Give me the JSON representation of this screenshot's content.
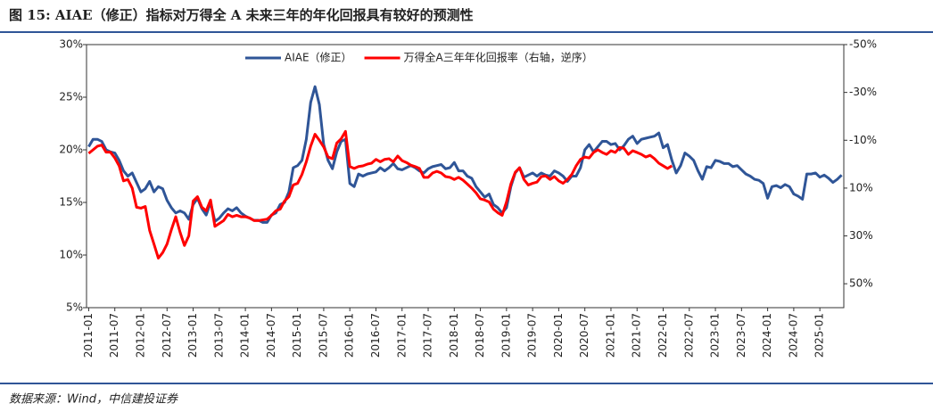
{
  "chart_data": {
    "type": "line",
    "title": "图 15: AIAE（修正）指标对万得全 A 未来三年的年化回报具有较好的预测性",
    "source": "数据来源：Wind，中信建投证券",
    "categories": [
      "2011-01",
      null,
      null,
      null,
      null,
      null,
      "2011-07",
      null,
      null,
      null,
      null,
      null,
      "2012-01",
      null,
      null,
      null,
      null,
      null,
      "2012-07",
      null,
      null,
      null,
      null,
      null,
      "2013-01",
      null,
      null,
      null,
      null,
      null,
      "2013-07",
      null,
      null,
      null,
      null,
      null,
      "2014-01",
      null,
      null,
      null,
      null,
      null,
      "2014-07",
      null,
      null,
      null,
      null,
      null,
      "2015-01",
      null,
      null,
      null,
      null,
      null,
      "2015-07",
      null,
      null,
      null,
      null,
      null,
      "2016-01",
      null,
      null,
      null,
      null,
      null,
      "2016-07",
      null,
      null,
      null,
      null,
      null,
      "2017-01",
      null,
      null,
      null,
      null,
      null,
      "2017-07",
      null,
      null,
      null,
      null,
      null,
      "2018-01",
      null,
      null,
      null,
      null,
      null,
      "2018-07",
      null,
      null,
      null,
      null,
      null,
      "2019-01",
      null,
      null,
      null,
      null,
      null,
      "2019-07",
      null,
      null,
      null,
      null,
      null,
      "2020-01",
      null,
      null,
      null,
      null,
      null,
      "2020-07",
      null,
      null,
      null,
      null,
      null,
      "2021-01",
      null,
      null,
      null,
      null,
      null,
      "2021-07",
      null,
      null,
      null,
      null,
      null,
      "2022-01",
      null,
      null,
      null,
      null,
      null,
      "2022-07",
      null,
      null,
      null,
      null,
      null,
      "2023-01",
      null,
      null,
      null,
      null,
      null,
      "2023-07",
      null,
      null,
      null,
      null,
      null,
      "2024-01",
      null,
      null,
      null,
      null,
      null,
      "2024-07",
      null,
      null,
      null,
      null,
      null,
      "2025-01",
      null,
      null,
      null,
      null,
      null
    ],
    "series": [
      {
        "name": "AIAE（修正）",
        "color": "#2f5597",
        "axis": "y",
        "values": [
          20.3,
          21.0,
          21.0,
          20.8,
          20.0,
          19.8,
          19.7,
          19.0,
          18.0,
          17.5,
          17.8,
          16.9,
          16.0,
          16.3,
          17.0,
          16.0,
          16.5,
          16.3,
          15.2,
          14.5,
          14.0,
          14.2,
          14.0,
          13.4,
          14.8,
          15.4,
          14.4,
          13.8,
          15.0,
          13.2,
          13.5,
          14.0,
          14.4,
          14.2,
          14.5,
          14.0,
          13.7,
          13.5,
          13.3,
          13.3,
          13.1,
          13.1,
          13.8,
          14.0,
          14.8,
          15.0,
          16.0,
          18.3,
          18.5,
          19.0,
          21.0,
          24.5,
          26.0,
          24.3,
          20.5,
          19.0,
          18.2,
          19.8,
          20.8,
          21.0,
          16.8,
          16.5,
          17.7,
          17.5,
          17.7,
          17.8,
          17.9,
          18.3,
          18.0,
          18.3,
          18.7,
          18.2,
          18.1,
          18.3,
          18.5,
          18.3,
          18.0,
          17.8,
          18.2,
          18.4,
          18.5,
          18.6,
          18.2,
          18.3,
          18.8,
          18.0,
          18.0,
          17.5,
          17.3,
          16.5,
          16.0,
          15.5,
          15.8,
          14.8,
          14.5,
          14.0,
          14.5,
          16.5,
          17.8,
          18.3,
          17.4,
          17.6,
          17.8,
          17.5,
          17.8,
          17.6,
          17.5,
          18.0,
          17.8,
          17.5,
          17.0,
          17.5,
          17.5,
          18.3,
          20.0,
          20.5,
          19.8,
          20.3,
          20.8,
          20.8,
          20.5,
          20.6,
          20.0,
          20.4,
          21.0,
          21.3,
          20.6,
          21.0,
          21.1,
          21.2,
          21.3,
          21.6,
          20.2,
          20.5,
          19.0,
          17.8,
          18.5,
          19.7,
          19.4,
          19.0,
          18.0,
          17.2,
          18.4,
          18.3,
          19.0,
          18.9,
          18.7,
          18.7,
          18.4,
          18.5,
          18.1,
          17.7,
          17.5,
          17.2,
          17.1,
          16.8,
          15.4,
          16.5,
          16.6,
          16.4,
          16.7,
          16.5,
          15.8,
          15.6,
          15.3,
          17.7,
          17.7,
          17.8,
          17.4,
          17.6,
          17.3,
          16.9,
          17.2,
          17.6
        ]
      },
      {
        "name": "万得全A三年年化回报率（右轴，逆序）",
        "color": "#ff0000",
        "axis": "y2",
        "values": [
          -4.5,
          -6,
          -7.5,
          -8,
          -5,
          -5,
          -2.6,
          0.7,
          7,
          6.4,
          10,
          18,
          18.4,
          17.7,
          27.7,
          33.4,
          39.3,
          37,
          33.4,
          27.4,
          22,
          28.5,
          34,
          30,
          15.4,
          13.6,
          18,
          19.5,
          15,
          26,
          24.8,
          23.6,
          21,
          22,
          21.4,
          22,
          22,
          22.5,
          23.6,
          23.6,
          23.3,
          23,
          21.4,
          19.5,
          18.8,
          15.4,
          13.6,
          8.7,
          8,
          4.3,
          -1,
          -7.5,
          -12.5,
          -10,
          -7.2,
          -3,
          -2.3,
          -8.8,
          -10.6,
          -13.7,
          1,
          1.8,
          1,
          0.7,
          0,
          -0.4,
          -2,
          -1,
          -2,
          -2.3,
          -1,
          -3.4,
          -1.5,
          -0.7,
          0.4,
          1,
          1.8,
          5.5,
          5.5,
          3.7,
          3,
          3.7,
          5.2,
          5.5,
          6.4,
          5.5,
          6.7,
          8.3,
          10,
          12,
          14.5,
          15,
          15.8,
          18.8,
          20.3,
          21.4,
          15.8,
          8.3,
          3.4,
          1.5,
          6.4,
          8.7,
          8,
          7.5,
          5.2,
          4.9,
          6.4,
          5.2,
          7,
          8,
          6.4,
          4.3,
          0.7,
          -2,
          -3,
          -2.6,
          -4.9,
          -6,
          -4.9,
          -4.1,
          -5.6,
          -4.9,
          -7,
          -6.6,
          -4.1,
          -5.6,
          -4.9,
          -4.1,
          -3,
          -3.7,
          -2.3,
          -0.4,
          0.7,
          1.8,
          0.7,
          null,
          null,
          null,
          null,
          null,
          null,
          null,
          null,
          null,
          null,
          null,
          null,
          null,
          null,
          null,
          null,
          null,
          null,
          null,
          null,
          null,
          null,
          null,
          null,
          null,
          null,
          null,
          null,
          null,
          null,
          null,
          null,
          null,
          null,
          null,
          null,
          null,
          null,
          null
        ]
      }
    ],
    "ylim": [
      5,
      30
    ],
    "yticks": [
      {
        "value": 5,
        "label": "5%"
      },
      {
        "value": 10,
        "label": "10%"
      },
      {
        "value": 15,
        "label": "15%"
      },
      {
        "value": 20,
        "label": "20%"
      },
      {
        "value": 25,
        "label": "25%"
      },
      {
        "value": 30,
        "label": "30%"
      }
    ],
    "y2lim": [
      -50,
      60
    ],
    "y2_reversed": true,
    "y2ticks": [
      {
        "value": -50,
        "label": "-50%"
      },
      {
        "value": -30,
        "label": "-30%"
      },
      {
        "value": -10,
        "label": "-10%"
      },
      {
        "value": 10,
        "label": "10%"
      },
      {
        "value": 30,
        "label": "30%"
      },
      {
        "value": 50,
        "label": "50%"
      }
    ],
    "legend": "top"
  }
}
